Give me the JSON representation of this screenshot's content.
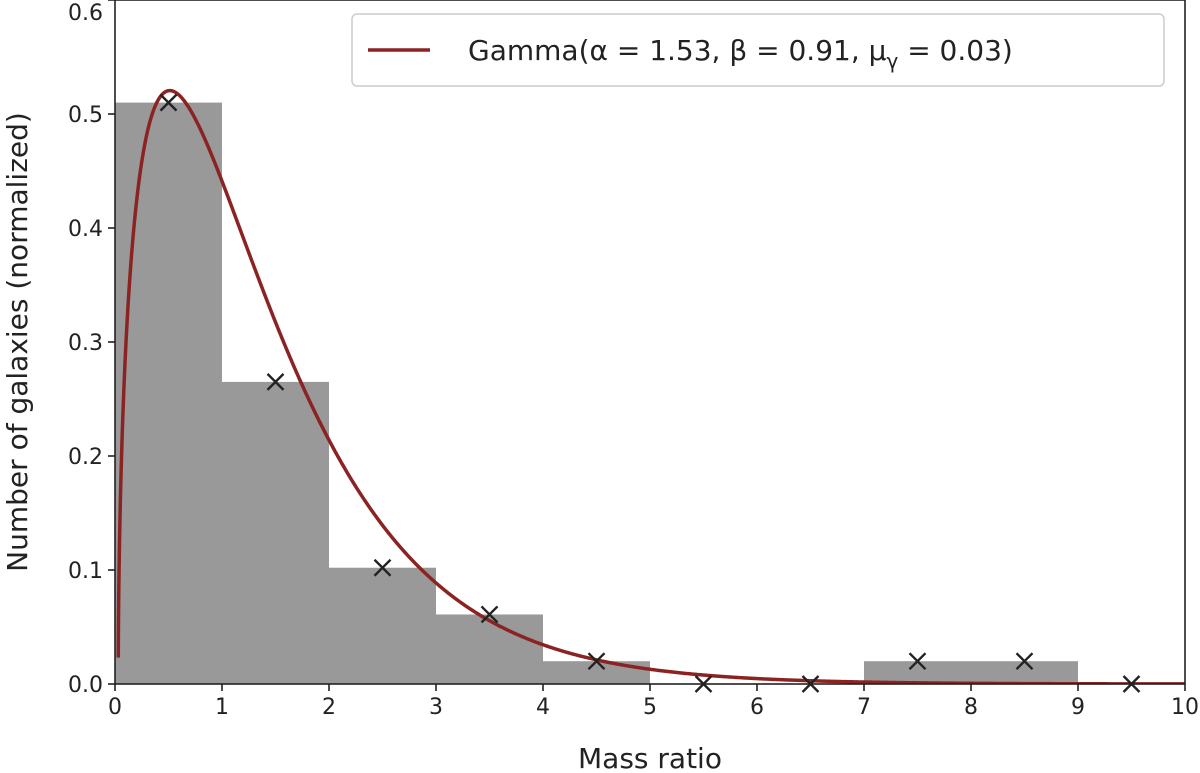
{
  "chart_data": {
    "type": "bar",
    "title": "",
    "xlabel": "Mass ratio",
    "ylabel": "Number of galaxies (normalized)",
    "xlim": [
      0,
      10
    ],
    "ylim": [
      0,
      0.6
    ],
    "xticks": [
      "0",
      "1",
      "2",
      "3",
      "4",
      "5",
      "6",
      "7",
      "8",
      "9",
      "10"
    ],
    "yticks": [
      "0.0",
      "0.1",
      "0.2",
      "0.3",
      "0.4",
      "0.5",
      "0.6"
    ],
    "grid": false,
    "legend_position": "top-right",
    "histogram": {
      "bin_edges": [
        0,
        1,
        2,
        3,
        4,
        5,
        6,
        7,
        8,
        9,
        10
      ],
      "values": [
        0.51,
        0.265,
        0.102,
        0.061,
        0.02,
        0.0,
        0.0,
        0.02,
        0.02,
        0.0
      ],
      "color": "#999999"
    },
    "markers": {
      "x": [
        0.5,
        1.5,
        2.5,
        3.5,
        4.5,
        5.5,
        6.5,
        7.5,
        8.5,
        9.5
      ],
      "y": [
        0.51,
        0.265,
        0.102,
        0.061,
        0.02,
        0.0,
        0.0,
        0.02,
        0.02,
        0.0
      ],
      "symbol": "x",
      "color": "#222222"
    },
    "fit_curve": {
      "name": "Gamma(α = 1.53, β = 0.91, μ",
      "name_subscript": "γ",
      "name_suffix": " = 0.03)",
      "distribution": "gamma",
      "alpha": 1.53,
      "beta": 0.91,
      "mu": 0.03,
      "color": "#8b2323"
    }
  }
}
